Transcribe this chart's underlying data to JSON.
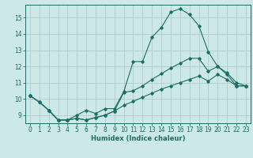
{
  "xlabel": "Humidex (Indice chaleur)",
  "bg_color": "#cde8e8",
  "grid_color": "#b0cccc",
  "line_color": "#1a6e64",
  "xlim": [
    -0.5,
    23.5
  ],
  "ylim": [
    8.5,
    15.8
  ],
  "xticks": [
    0,
    1,
    2,
    3,
    4,
    5,
    6,
    7,
    8,
    9,
    10,
    11,
    12,
    13,
    14,
    15,
    16,
    17,
    18,
    19,
    20,
    21,
    22,
    23
  ],
  "yticks": [
    9,
    10,
    11,
    12,
    13,
    14,
    15
  ],
  "line1_x": [
    0,
    1,
    2,
    3,
    4,
    5,
    6,
    7,
    8,
    9,
    10,
    11,
    12,
    13,
    14,
    15,
    16,
    17,
    18,
    19,
    20,
    21,
    22,
    23
  ],
  "line1_y": [
    10.2,
    9.8,
    9.3,
    8.7,
    8.7,
    9.0,
    9.3,
    9.1,
    9.4,
    9.4,
    10.45,
    12.3,
    12.3,
    13.8,
    14.4,
    15.35,
    15.55,
    15.2,
    14.5,
    12.9,
    12.0,
    11.6,
    11.0,
    10.8
  ],
  "line2_x": [
    0,
    1,
    2,
    3,
    4,
    5,
    6,
    7,
    8,
    9,
    10,
    11,
    12,
    13,
    14,
    15,
    16,
    17,
    18,
    19,
    20,
    21,
    22,
    23
  ],
  "line2_y": [
    10.2,
    9.8,
    9.3,
    8.7,
    8.7,
    8.8,
    8.7,
    8.85,
    9.0,
    9.25,
    10.4,
    10.5,
    10.8,
    11.2,
    11.55,
    11.9,
    12.2,
    12.5,
    12.5,
    11.7,
    12.0,
    11.5,
    10.8,
    10.8
  ],
  "line3_x": [
    0,
    1,
    2,
    3,
    4,
    5,
    6,
    7,
    8,
    9,
    10,
    11,
    12,
    13,
    14,
    15,
    16,
    17,
    18,
    19,
    20,
    21,
    22,
    23
  ],
  "line3_y": [
    10.2,
    9.8,
    9.3,
    8.7,
    8.7,
    8.8,
    8.7,
    8.85,
    9.0,
    9.25,
    9.6,
    9.85,
    10.1,
    10.35,
    10.6,
    10.8,
    11.0,
    11.2,
    11.4,
    11.1,
    11.5,
    11.2,
    10.8,
    10.8
  ]
}
